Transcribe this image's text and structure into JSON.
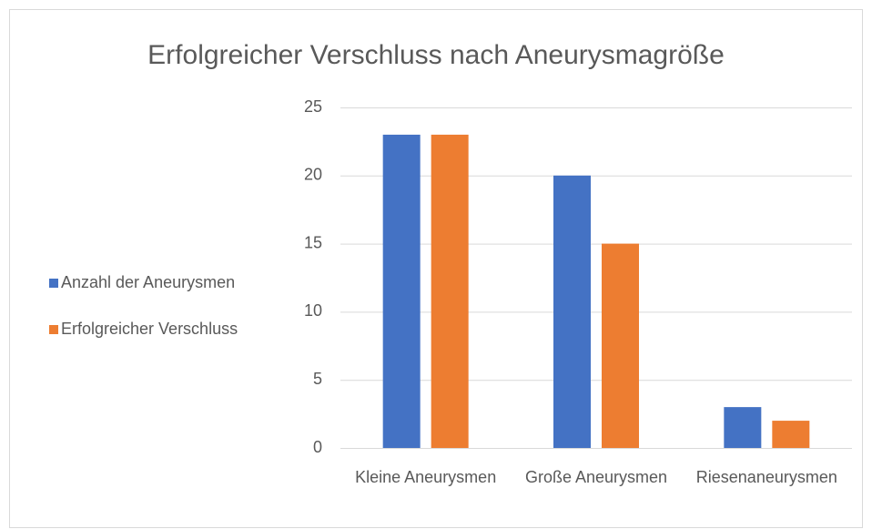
{
  "chart_data": {
    "type": "bar",
    "title": "Erfolgreicher Verschluss nach Aneurysmagröße",
    "categories": [
      "Kleine Aneurysmen",
      "Große Aneurysmen",
      "Riesenaneurysmen"
    ],
    "series": [
      {
        "name": "Anzahl der Aneurysmen",
        "color": "#4472c4",
        "values": [
          23,
          20,
          3
        ]
      },
      {
        "name": "Erfolgreicher Verschluss",
        "color": "#ed7d31",
        "values": [
          23,
          15,
          2
        ]
      }
    ],
    "ylim": [
      0,
      25
    ],
    "yticks": [
      0,
      5,
      10,
      15,
      20,
      25
    ],
    "grid": true,
    "legend": "left"
  }
}
